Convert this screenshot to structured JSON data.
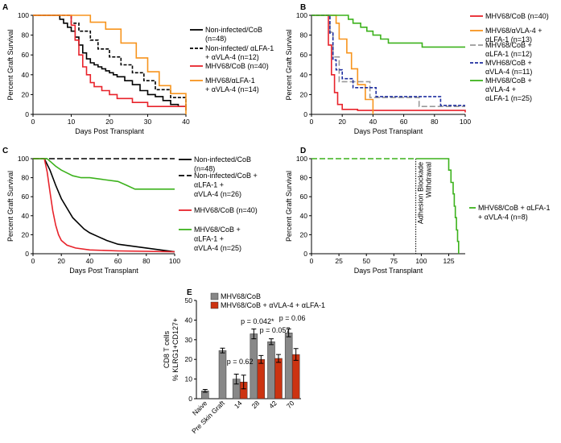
{
  "figure": {
    "panels": [
      "A",
      "B",
      "C",
      "D",
      "E"
    ]
  },
  "chart_data": [
    {
      "panel": "A",
      "type": "line",
      "step": true,
      "xlabel": "Days Post Transplant",
      "ylabel": "Percent Graft Survival",
      "xlim": [
        0,
        40
      ],
      "ylim": [
        0,
        100
      ],
      "xticks": [
        0,
        10,
        20,
        30,
        40
      ],
      "yticks": [
        0,
        20,
        40,
        60,
        80,
        100
      ],
      "legend_position": "right",
      "series": [
        {
          "name": "Non-infected/CoB",
          "legend": [
            "Non-infected/CoB",
            "(n=48)"
          ],
          "color": "#000000",
          "dash": "solid",
          "x": [
            0,
            6,
            7,
            8,
            9,
            10,
            11,
            12,
            13,
            14,
            15,
            16,
            17,
            18,
            19,
            20,
            21,
            22,
            24,
            26,
            28,
            30,
            32,
            34,
            36,
            38,
            40
          ],
          "y": [
            100,
            100,
            96,
            92,
            88,
            84,
            78,
            70,
            62,
            56,
            52,
            50,
            48,
            46,
            44,
            42,
            40,
            38,
            34,
            30,
            24,
            20,
            18,
            14,
            10,
            8,
            4
          ]
        },
        {
          "name": "Non-infected/ αLFA-1 + αVLA-4",
          "legend": [
            "Non-infected/ αLFA-1",
            "+ αVLA-4 (n=12)"
          ],
          "color": "#000000",
          "dash": "4,2",
          "x": [
            0,
            8,
            10,
            12,
            15,
            17,
            20,
            23,
            26,
            29,
            32,
            36,
            40
          ],
          "y": [
            100,
            100,
            92,
            84,
            75,
            66,
            58,
            50,
            42,
            34,
            25,
            17,
            8
          ]
        },
        {
          "name": "MHV68/CoB",
          "legend": [
            "MHV68/CoB (n=40)"
          ],
          "color": "#e8232b",
          "dash": "solid",
          "x": [
            0,
            9,
            10,
            11,
            12,
            13,
            14,
            15,
            16,
            18,
            20,
            22,
            26,
            30,
            40
          ],
          "y": [
            100,
            100,
            90,
            75,
            60,
            48,
            40,
            32,
            28,
            24,
            20,
            16,
            12,
            8,
            5
          ]
        },
        {
          "name": "MHV68/αLFA-1 + αVLA-4",
          "legend": [
            "MHV68/αLFA-1",
            "+ αVLA-4 (n=14)"
          ],
          "color": "#f7941d",
          "dash": "solid",
          "x": [
            0,
            12,
            15,
            19,
            23,
            27,
            30,
            33,
            36,
            40
          ],
          "y": [
            100,
            100,
            93,
            86,
            72,
            57,
            43,
            29,
            21,
            0
          ]
        }
      ]
    },
    {
      "panel": "B",
      "type": "line",
      "step": true,
      "xlabel": "Days Post Transplant",
      "ylabel": "Percent Graft Survival",
      "xlim": [
        0,
        100
      ],
      "ylim": [
        0,
        100
      ],
      "xticks": [
        0,
        20,
        40,
        60,
        80,
        100
      ],
      "yticks": [
        0,
        20,
        40,
        60,
        80,
        100
      ],
      "legend_position": "right",
      "series": [
        {
          "name": "MHV68/CoB",
          "legend": [
            "MHV68/CoB (n=40)"
          ],
          "color": "#e8232b",
          "dash": "solid",
          "x": [
            0,
            9,
            11,
            13,
            15,
            17,
            20,
            30,
            100
          ],
          "y": [
            100,
            100,
            70,
            40,
            22,
            10,
            5,
            4,
            2
          ]
        },
        {
          "name": "MHV68/αVLA-4 + αLFA-1",
          "legend": [
            "MHV68/αVLA-4 +",
            "αLFA-1 (n=13)"
          ],
          "color": "#f7941d",
          "dash": "solid",
          "x": [
            0,
            14,
            16,
            18,
            23,
            26,
            30,
            35,
            40
          ],
          "y": [
            100,
            100,
            92,
            76,
            62,
            46,
            30,
            15,
            0
          ]
        },
        {
          "name": "MHV68/CoB + αLFA-1",
          "legend": [
            "MHV68/CoB +",
            "αLFA-1 (n=12)"
          ],
          "color": "#999999",
          "dash": "7,3",
          "x": [
            0,
            10,
            12,
            14,
            18,
            25,
            38,
            45,
            70,
            100
          ],
          "y": [
            100,
            100,
            83,
            58,
            33,
            33,
            17,
            17,
            8,
            8
          ]
        },
        {
          "name": "MVH68/CoB + αVLA-4",
          "legend": [
            "MVH68/CoB +",
            "αVLA-4 (n=11)"
          ],
          "color": "#1f2fa0",
          "dash": "4,2",
          "x": [
            0,
            10,
            12,
            14,
            16,
            20,
            27,
            42,
            84,
            100
          ],
          "y": [
            100,
            100,
            82,
            55,
            45,
            36,
            27,
            18,
            9,
            9
          ]
        },
        {
          "name": "MHV68/CoB + αVLA-4 + αLFA-1",
          "legend": [
            "MHV68/CoB +",
            "αVLA-4 +",
            "αLFA-1 (n=25)"
          ],
          "color": "#3cb21c",
          "dash": "solid",
          "x": [
            0,
            22,
            24,
            27,
            32,
            36,
            40,
            45,
            50,
            60,
            72,
            100
          ],
          "y": [
            100,
            100,
            96,
            92,
            88,
            84,
            80,
            76,
            72,
            72,
            68,
            68
          ]
        }
      ]
    },
    {
      "panel": "C",
      "type": "line",
      "step": false,
      "xlabel": "Days Post Transplant",
      "ylabel": "Percent Graft Survival",
      "xlim": [
        0,
        100
      ],
      "ylim": [
        0,
        100
      ],
      "xticks": [
        0,
        20,
        40,
        60,
        80,
        100
      ],
      "yticks": [
        0,
        20,
        40,
        60,
        80,
        100
      ],
      "legend_position": "right",
      "series": [
        {
          "name": "Non-infected/CoB",
          "legend": [
            "Non-infected/CoB",
            "(n=48)"
          ],
          "color": "#000000",
          "dash": "solid",
          "x": [
            0,
            8,
            12,
            16,
            20,
            24,
            28,
            32,
            36,
            40,
            46,
            52,
            60,
            70,
            80,
            90,
            100
          ],
          "y": [
            100,
            100,
            88,
            72,
            58,
            48,
            38,
            32,
            26,
            22,
            18,
            14,
            10,
            8,
            6,
            4,
            2
          ]
        },
        {
          "name": "Non-infected/CoB + αLFA-1 + αVLA-4",
          "legend": [
            "Non-infected/CoB +",
            "αLFA-1 +",
            "αVLA-4 (n=26)"
          ],
          "color": "#000000",
          "dash": "7,3",
          "x": [
            0,
            100
          ],
          "y": [
            100,
            100
          ]
        },
        {
          "name": "MHV68/CoB",
          "legend": [
            "MHV68/CoB (n=40)"
          ],
          "color": "#e8232b",
          "dash": "solid",
          "x": [
            0,
            8,
            10,
            12,
            14,
            16,
            18,
            20,
            24,
            30,
            40,
            60,
            100
          ],
          "y": [
            100,
            100,
            86,
            65,
            45,
            30,
            20,
            14,
            9,
            6,
            4,
            3,
            2
          ]
        },
        {
          "name": "MHV68/CoB + αLFA-1 + αVLA-4",
          "legend": [
            "MHV68/CoB +",
            "αLFA-1 +",
            "αVLA-4 (n=25)"
          ],
          "color": "#3cb21c",
          "dash": "solid",
          "x": [
            0,
            10,
            13,
            16,
            20,
            24,
            28,
            34,
            40,
            50,
            60,
            66,
            72,
            80,
            100
          ],
          "y": [
            100,
            100,
            96,
            92,
            88,
            85,
            82,
            80,
            80,
            78,
            76,
            72,
            68,
            68,
            68
          ]
        }
      ]
    },
    {
      "panel": "D",
      "type": "line",
      "step": true,
      "xlabel": "Days Post Transplant",
      "ylabel": "Percent Graft Survival",
      "xlim": [
        0,
        140
      ],
      "ylim": [
        0,
        100
      ],
      "xticks": [
        0,
        25,
        50,
        75,
        100,
        125
      ],
      "yticks": [
        0,
        20,
        40,
        60,
        80,
        100
      ],
      "legend_position": "right",
      "annotation": {
        "x": 95,
        "lines": [
          "Adhesion Blockade",
          "Withdrawal"
        ]
      },
      "series": [
        {
          "name": "MHV68/CoB + αLFA-1 + αVLA-4 (dashed)",
          "legend": [],
          "color": "#3cb21c",
          "dash": "7,3",
          "x": [
            0,
            95
          ],
          "y": [
            100,
            100
          ]
        },
        {
          "name": "MHV68/CoB + αLFA-1 + αVLA-4",
          "legend": [
            "MHV68/CoB + αLFA-1",
            "+ αVLA-4 (n=8)"
          ],
          "color": "#3cb21c",
          "dash": "solid",
          "x": [
            95,
            121,
            125,
            127,
            129,
            130,
            131,
            132,
            133,
            134
          ],
          "y": [
            100,
            100,
            88,
            75,
            63,
            50,
            38,
            25,
            13,
            0
          ]
        }
      ]
    },
    {
      "panel": "E",
      "type": "bar",
      "ylabel": [
        "CD8 T cells",
        "% KLRG1+CD127+"
      ],
      "ylim": [
        0,
        50
      ],
      "yticks": [
        0,
        10,
        20,
        30,
        40,
        50
      ],
      "categories": [
        "Naive",
        "Pre Skin Graft",
        "14",
        "28",
        "42",
        "70"
      ],
      "legend_position": "top",
      "series": [
        {
          "name": "MHV68/CoB",
          "color": "#888888",
          "values": [
            4,
            24.5,
            10,
            33,
            29,
            33.5
          ],
          "errors": [
            0.7,
            1.2,
            2.5,
            2.5,
            1.5,
            2
          ]
        },
        {
          "name": "MHV68/CoB + αVLA-4 + αLFA-1",
          "color": "#cc3311",
          "values": [
            null,
            null,
            8.5,
            20,
            20.5,
            22.5
          ],
          "errors": [
            null,
            null,
            3.5,
            2,
            2,
            3
          ]
        }
      ],
      "annotations": [
        "p = 0.62",
        "p = 0.042*",
        "p = 0.057",
        "p = 0.06"
      ]
    }
  ]
}
